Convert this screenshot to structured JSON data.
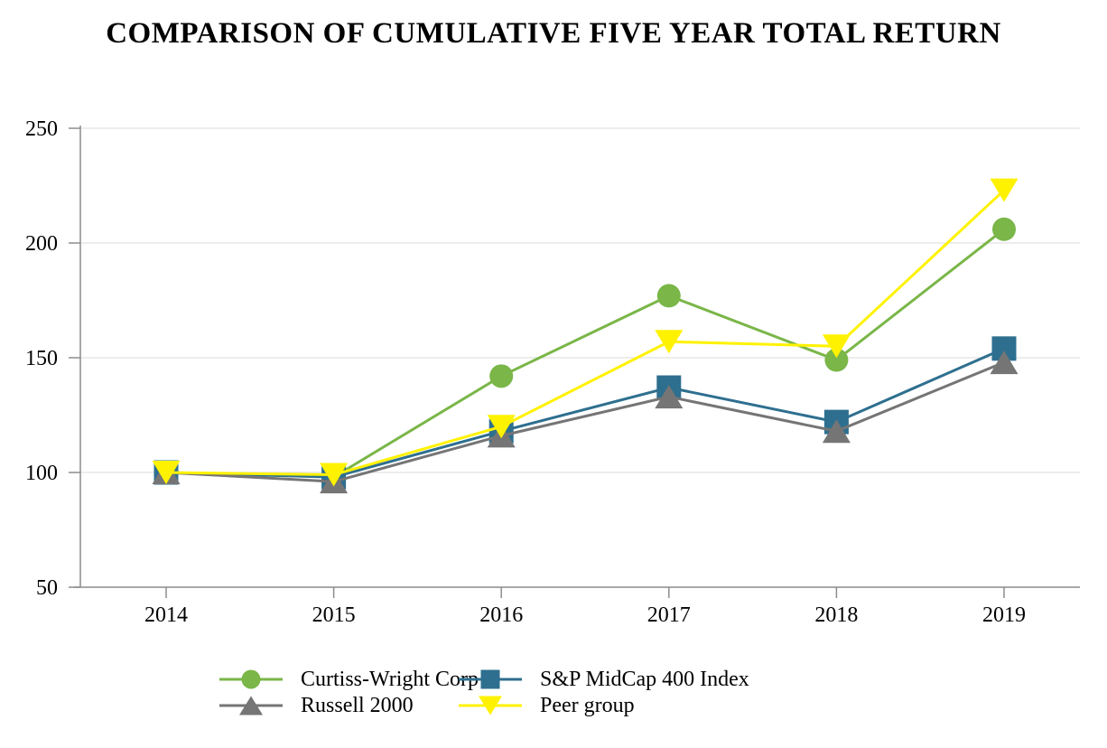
{
  "title": "COMPARISON OF CUMULATIVE FIVE YEAR TOTAL RETURN",
  "chart_data": {
    "type": "line",
    "categories": [
      "2014",
      "2015",
      "2016",
      "2017",
      "2018",
      "2019"
    ],
    "series": [
      {
        "name": "Curtiss-Wright Corp",
        "marker": "circle",
        "color": "#7AB648",
        "values": [
          100,
          98,
          142,
          177,
          149,
          206
        ]
      },
      {
        "name": "S&P MidCap 400 Index",
        "marker": "square",
        "color": "#2E6F8F",
        "values": [
          100,
          98,
          118,
          137,
          122,
          154
        ]
      },
      {
        "name": "Russell 2000",
        "marker": "triangle-up",
        "color": "#757575",
        "values": [
          100,
          96,
          116,
          133,
          118,
          148
        ]
      },
      {
        "name": "Peer group",
        "marker": "triangle-down",
        "color": "#FFF200",
        "values": [
          100,
          99,
          120,
          157,
          155,
          223
        ]
      }
    ],
    "ylim": [
      50,
      250
    ],
    "yticks": [
      50,
      100,
      150,
      200,
      250
    ],
    "xlabel": "",
    "ylabel": "",
    "grid": "horizontal-light",
    "legend_position": "bottom-two-columns"
  },
  "colors": {
    "background": "#FFFFFF",
    "axis": "#8C8C8C",
    "gridline": "#E7E7E7",
    "text": "#000000"
  }
}
